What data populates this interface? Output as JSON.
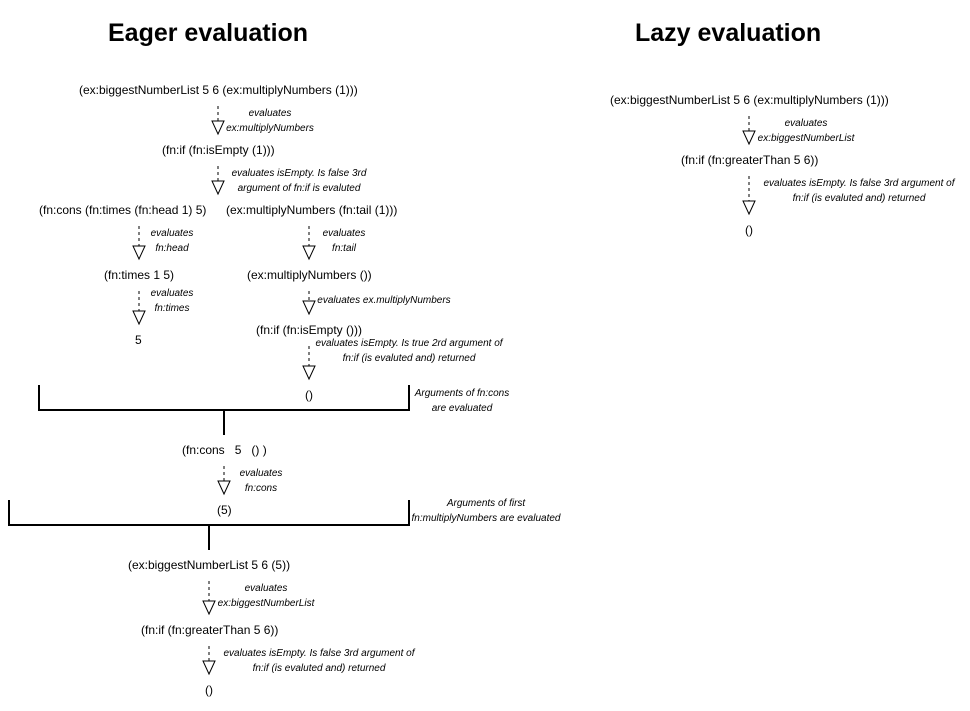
{
  "titles": {
    "eager": "Eager evaluation",
    "lazy": "Lazy evaluation"
  },
  "eager": {
    "e1": "(ex:biggestNumberList 5 6 (ex:multiplyNumbers (1)))",
    "n1": [
      "evaluates",
      "ex:multiplyNumbers"
    ],
    "e2": "(fn:if (fn:isEmpty (1)))",
    "n2": [
      "evaluates isEmpty. Is false 3rd",
      "argument of fn:if is evaluted"
    ],
    "e3a": "(fn:cons  (fn:times (fn:head 1) 5)",
    "e3b": "(ex:multiplyNumbers (fn:tail (1)))",
    "n3a": [
      "evaluates",
      "fn:head"
    ],
    "n3b": [
      "evaluates",
      "fn:tail"
    ],
    "e4a": "(fn:times 1 5)",
    "e4b": "(ex:multiplyNumbers ())",
    "n4a": [
      "evaluates",
      "fn:times"
    ],
    "n4b": [
      "evaluates ex.multiplyNumbers"
    ],
    "e5a": "5",
    "e5b": "(fn:if (fn:isEmpty ()))",
    "n5b": [
      "evaluates isEmpty. Is true 2rd argument of",
      "fn:if (is evaluted and) returned"
    ],
    "e6b": "()",
    "bracket1_note": [
      "Arguments of fn:cons",
      "are evaluated"
    ],
    "e7": "(fn:cons   5   () )",
    "n7": [
      "evaluates",
      "fn:cons"
    ],
    "e8": "(5)",
    "bracket2_note": [
      "Arguments of first",
      "fn:multiplyNumbers are evaluated"
    ],
    "e9": "(ex:biggestNumberList 5 6 (5))",
    "n9": [
      "evaluates",
      "ex:biggestNumberList"
    ],
    "e10": "(fn:if (fn:greaterThan 5 6))",
    "n10": [
      "evaluates isEmpty. Is false 3rd argument of",
      "fn:if (is evaluted and) returned"
    ],
    "e11": "()"
  },
  "lazy": {
    "e1": "(ex:biggestNumberList 5 6 (ex:multiplyNumbers (1)))",
    "n1": [
      "evaluates",
      "ex:biggestNumberList"
    ],
    "e2": "(fn:if (fn:greaterThan 5 6))",
    "n2": [
      "evaluates isEmpty. Is false 3rd argument of",
      "fn:if (is evaluted and) returned"
    ],
    "e3": "()"
  }
}
